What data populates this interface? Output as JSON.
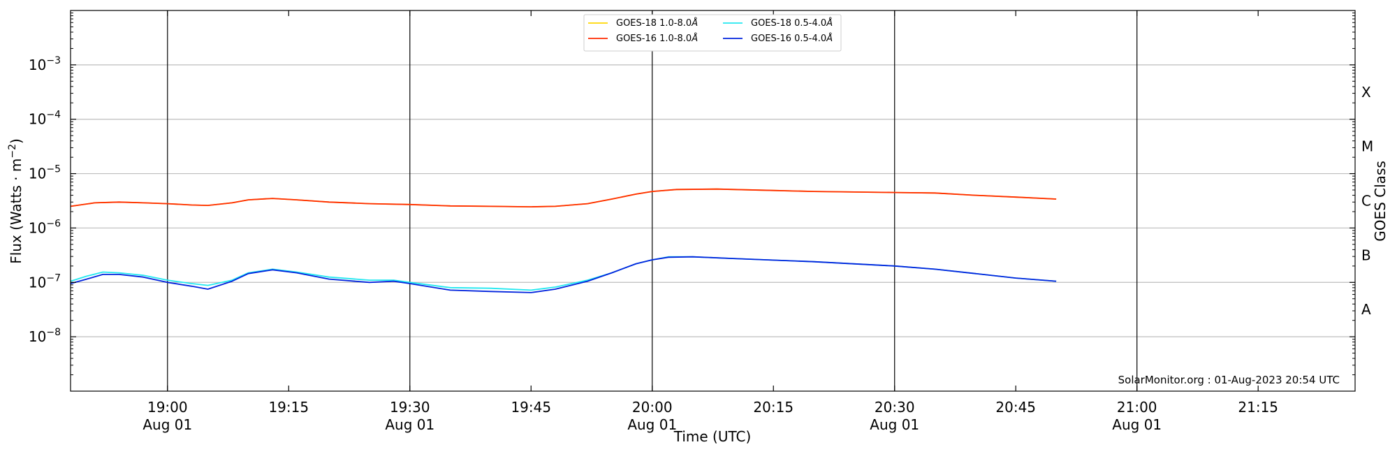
{
  "chart_data": {
    "type": "line",
    "title": "",
    "xlabel": "Time (UTC)",
    "ylabel": "Flux (Watts · m",
    "ylabel_sup": "−2",
    "ylabel_close": ")",
    "y2label": "GOES Class",
    "yscale": "log",
    "ylim": [
      1e-09,
      0.01
    ],
    "xlim": [
      "18:48",
      "21:27"
    ],
    "grid": "horizontal",
    "legend_position": "top-center",
    "watermark": "SolarMonitor.org : 01-Aug-2023 20:54 UTC",
    "yticks": [
      {
        "value": 1e-08,
        "base": "10",
        "exp": "−8"
      },
      {
        "value": 1e-07,
        "base": "10",
        "exp": "−7"
      },
      {
        "value": 1e-06,
        "base": "10",
        "exp": "−6"
      },
      {
        "value": 1e-05,
        "base": "10",
        "exp": "−5"
      },
      {
        "value": 0.0001,
        "base": "10",
        "exp": "−4"
      },
      {
        "value": 0.001,
        "base": "10",
        "exp": "−3"
      }
    ],
    "xticks": [
      {
        "time": "19:00",
        "line1": "19:00",
        "line2": "Aug 01",
        "major": true
      },
      {
        "time": "19:15",
        "line1": "19:15",
        "line2": "",
        "major": false
      },
      {
        "time": "19:30",
        "line1": "19:30",
        "line2": "Aug 01",
        "major": true
      },
      {
        "time": "19:45",
        "line1": "19:45",
        "line2": "",
        "major": false
      },
      {
        "time": "20:00",
        "line1": "20:00",
        "line2": "Aug 01",
        "major": true
      },
      {
        "time": "20:15",
        "line1": "20:15",
        "line2": "",
        "major": false
      },
      {
        "time": "20:30",
        "line1": "20:30",
        "line2": "Aug 01",
        "major": true
      },
      {
        "time": "20:45",
        "line1": "20:45",
        "line2": "",
        "major": false
      },
      {
        "time": "21:00",
        "line1": "21:00",
        "line2": "Aug 01",
        "major": true
      },
      {
        "time": "21:15",
        "line1": "21:15",
        "line2": "",
        "major": false
      }
    ],
    "goes_classes": [
      {
        "label": "A",
        "value": 3.16e-08
      },
      {
        "label": "B",
        "value": 3.16e-07
      },
      {
        "label": "C",
        "value": 3.16e-06
      },
      {
        "label": "M",
        "value": 3.16e-05
      },
      {
        "label": "X",
        "value": 0.000316
      }
    ],
    "series": [
      {
        "name": "GOES-18 1.0-8.0",
        "name_suffix": "Å",
        "color": "#ffd700",
        "x": [
          "18:48",
          "18:51",
          "18:54",
          "18:57",
          "19:00",
          "19:03",
          "19:05",
          "19:08",
          "19:10",
          "19:13",
          "19:16",
          "19:20",
          "19:25",
          "19:30",
          "19:35",
          "19:40",
          "19:45",
          "19:48",
          "19:52",
          "19:55",
          "19:58",
          "20:00",
          "20:03",
          "20:08",
          "20:15",
          "20:20",
          "20:30",
          "20:35",
          "20:40",
          "20:45",
          "20:50"
        ],
        "values": [
          2.5e-06,
          2.9e-06,
          3e-06,
          2.9e-06,
          2.8e-06,
          2.65e-06,
          2.6e-06,
          2.9e-06,
          3.3e-06,
          3.5e-06,
          3.3e-06,
          3e-06,
          2.8e-06,
          2.7e-06,
          2.55e-06,
          2.5e-06,
          2.45e-06,
          2.5e-06,
          2.8e-06,
          3.4e-06,
          4.2e-06,
          4.7e-06,
          5.1e-06,
          5.2e-06,
          4.9e-06,
          4.7e-06,
          4.5e-06,
          4.4e-06,
          4e-06,
          3.7e-06,
          3.4e-06
        ]
      },
      {
        "name": "GOES-16 1.0-8.0",
        "name_suffix": "Å",
        "color": "#ff2a00",
        "x": [
          "18:48",
          "18:51",
          "18:54",
          "18:57",
          "19:00",
          "19:03",
          "19:05",
          "19:08",
          "19:10",
          "19:13",
          "19:16",
          "19:20",
          "19:25",
          "19:30",
          "19:35",
          "19:40",
          "19:45",
          "19:48",
          "19:52",
          "19:55",
          "19:58",
          "20:00",
          "20:03",
          "20:08",
          "20:15",
          "20:20",
          "20:30",
          "20:35",
          "20:40",
          "20:45",
          "20:50"
        ],
        "values": [
          2.5e-06,
          2.9e-06,
          3e-06,
          2.9e-06,
          2.8e-06,
          2.65e-06,
          2.6e-06,
          2.9e-06,
          3.3e-06,
          3.5e-06,
          3.3e-06,
          3e-06,
          2.8e-06,
          2.7e-06,
          2.55e-06,
          2.5e-06,
          2.45e-06,
          2.5e-06,
          2.8e-06,
          3.4e-06,
          4.2e-06,
          4.7e-06,
          5.1e-06,
          5.2e-06,
          4.9e-06,
          4.7e-06,
          4.5e-06,
          4.4e-06,
          4e-06,
          3.7e-06,
          3.4e-06
        ]
      },
      {
        "name": "GOES-18 0.5-4.0",
        "name_suffix": "Å",
        "color": "#22e8f0",
        "x": [
          "18:48",
          "18:50",
          "18:52",
          "18:54",
          "18:57",
          "19:00",
          "19:03",
          "19:05",
          "19:08",
          "19:10",
          "19:13",
          "19:16",
          "19:20",
          "19:25",
          "19:28",
          "19:30",
          "19:35",
          "19:40",
          "19:45",
          "19:48",
          "19:52",
          "19:55",
          "19:58",
          "20:00",
          "20:02",
          "20:05",
          "20:10",
          "20:20",
          "20:30",
          "20:35",
          "20:40",
          "20:45",
          "20:50"
        ],
        "values": [
          1.05e-07,
          1.3e-07,
          1.55e-07,
          1.5e-07,
          1.35e-07,
          1.1e-07,
          9.5e-08,
          8.8e-08,
          1.1e-07,
          1.5e-07,
          1.75e-07,
          1.55e-07,
          1.25e-07,
          1.1e-07,
          1.1e-07,
          1e-07,
          8e-08,
          7.8e-08,
          7.2e-08,
          8.2e-08,
          1.1e-07,
          1.5e-07,
          2.2e-07,
          2.6e-07,
          2.95e-07,
          2.95e-07,
          2.75e-07,
          2.4e-07,
          2e-07,
          1.75e-07,
          1.45e-07,
          1.2e-07,
          1.05e-07
        ]
      },
      {
        "name": "GOES-16 0.5-4.0",
        "name_suffix": "Å",
        "color": "#0022dd",
        "x": [
          "18:48",
          "18:50",
          "18:52",
          "18:54",
          "18:57",
          "19:00",
          "19:03",
          "19:05",
          "19:08",
          "19:10",
          "19:13",
          "19:16",
          "19:20",
          "19:25",
          "19:28",
          "19:30",
          "19:35",
          "19:40",
          "19:45",
          "19:48",
          "19:52",
          "19:55",
          "19:58",
          "20:00",
          "20:02",
          "20:05",
          "20:10",
          "20:20",
          "20:30",
          "20:35",
          "20:40",
          "20:45",
          "20:50"
        ],
        "values": [
          9.5e-08,
          1.15e-07,
          1.4e-07,
          1.4e-07,
          1.25e-07,
          1e-07,
          8.5e-08,
          7.5e-08,
          1.05e-07,
          1.45e-07,
          1.7e-07,
          1.5e-07,
          1.15e-07,
          1e-07,
          1.05e-07,
          9.5e-08,
          7.2e-08,
          6.8e-08,
          6.5e-08,
          7.5e-08,
          1.05e-07,
          1.5e-07,
          2.2e-07,
          2.6e-07,
          2.9e-07,
          2.95e-07,
          2.75e-07,
          2.4e-07,
          2e-07,
          1.75e-07,
          1.45e-07,
          1.2e-07,
          1.05e-07
        ]
      }
    ]
  }
}
